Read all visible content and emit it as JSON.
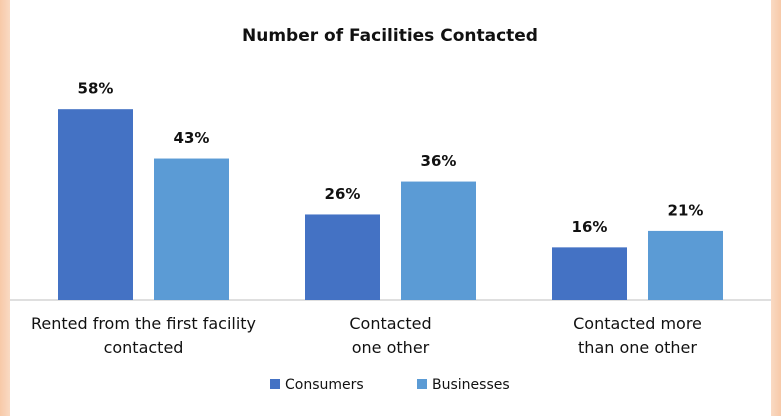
{
  "chart_data": {
    "type": "bar",
    "title": "Number of Facilities Contacted",
    "categories": [
      "Rented from the first facility\ncontacted",
      "Contacted\none other",
      "Contacted more\nthan one other"
    ],
    "series": [
      {
        "name": "Consumers",
        "color": "#4472c4",
        "values": [
          58,
          26,
          16
        ],
        "value_labels": [
          "58%",
          "26%",
          "16%"
        ]
      },
      {
        "name": "Businesses",
        "color": "#5b9bd5",
        "values": [
          43,
          36,
          21
        ],
        "value_labels": [
          "43%",
          "36%",
          "21%"
        ]
      }
    ],
    "legend": "bottom"
  }
}
